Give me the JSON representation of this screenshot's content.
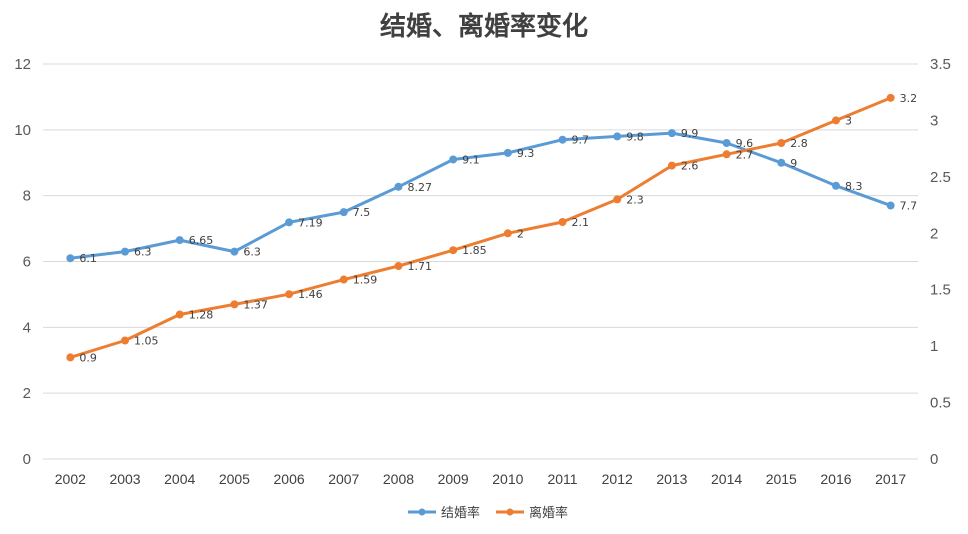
{
  "chart_data": {
    "type": "line",
    "title": "结婚、离婚率变化",
    "x": [
      "2002",
      "2003",
      "2004",
      "2005",
      "2006",
      "2007",
      "2008",
      "2009",
      "2010",
      "2011",
      "2012",
      "2013",
      "2014",
      "2015",
      "2016",
      "2017"
    ],
    "series": [
      {
        "name": "结婚率",
        "axis": "left",
        "color": "#5b9bd5",
        "values": [
          6.1,
          6.3,
          6.65,
          6.3,
          7.19,
          7.5,
          8.27,
          9.1,
          9.3,
          9.7,
          9.8,
          9.9,
          9.6,
          9,
          8.3,
          7.7
        ]
      },
      {
        "name": "离婚率",
        "axis": "right",
        "color": "#ed7d31",
        "values": [
          0.9,
          1.05,
          1.28,
          1.37,
          1.46,
          1.59,
          1.71,
          1.85,
          2,
          2.1,
          2.3,
          2.6,
          2.7,
          2.8,
          3,
          3.2
        ]
      }
    ],
    "y_left": {
      "ylim": [
        0,
        12
      ],
      "ticks": [
        "0",
        "2",
        "4",
        "6",
        "8",
        "10",
        "12"
      ]
    },
    "y_right": {
      "ylim": [
        0,
        3.5
      ],
      "ticks": [
        "0",
        "0.5",
        "1",
        "1.5",
        "2",
        "2.5",
        "3",
        "3.5"
      ]
    },
    "grid": true,
    "legend_position": "bottom"
  }
}
